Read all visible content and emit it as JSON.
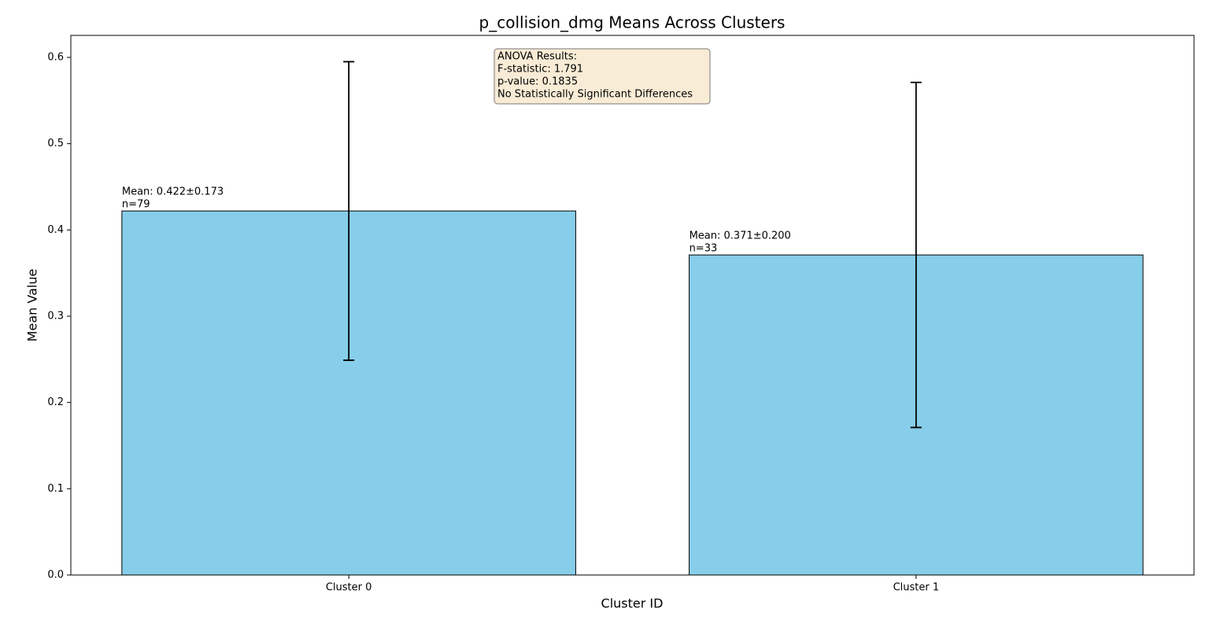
{
  "chart_data": {
    "type": "bar",
    "title": "p_collision_dmg Means Across Clusters",
    "x_label": "Cluster ID",
    "y_label": "Mean Value",
    "categories": [
      "Cluster 0",
      "Cluster 1"
    ],
    "values": [
      0.422,
      0.371
    ],
    "errors": [
      0.173,
      0.2
    ],
    "value_labels": [
      "Mean: 0.422±0.173",
      "Mean: 0.371±0.200"
    ],
    "count_labels": [
      "n=79",
      "n=33"
    ],
    "color": "#87ceeb",
    "edge_color": "#000000",
    "ylim": [
      0,
      0.6255
    ],
    "yticks": [
      {
        "value": 0,
        "label": "0.0"
      },
      0.1,
      0.2,
      0.3,
      0.4,
      0.5,
      0.6
    ],
    "annotation": [
      "ANOVA Results:",
      "F-statistic: 1.791",
      "p-value: 0.1835",
      "No Statistically Significant Differences"
    ]
  }
}
